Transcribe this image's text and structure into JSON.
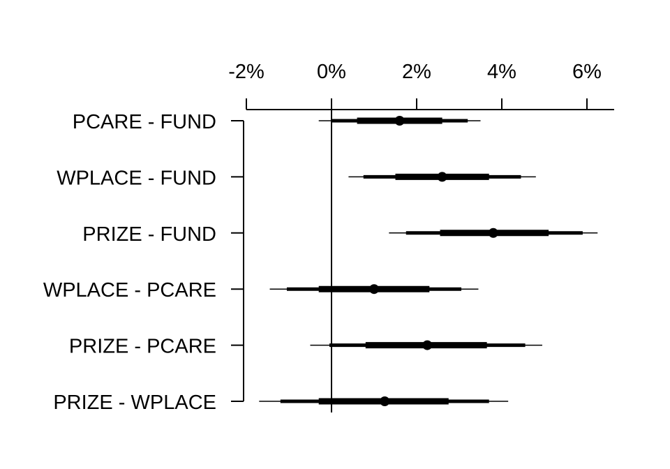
{
  "chart_data": {
    "type": "forest",
    "x_axis": {
      "ticks": [
        -2,
        0,
        2,
        4,
        6
      ],
      "tick_labels": [
        "-2%",
        "0%",
        "2%",
        "4%",
        "6%"
      ],
      "position": "top",
      "reference_line": 0
    },
    "comparisons": [
      {
        "label": "PCARE - FUND",
        "estimate": 1.6,
        "inner": [
          0.6,
          2.6
        ],
        "middle": [
          0.0,
          3.2
        ],
        "outer": [
          -0.3,
          3.5
        ]
      },
      {
        "label": "WPLACE - FUND",
        "estimate": 2.6,
        "inner": [
          1.5,
          3.7
        ],
        "middle": [
          0.75,
          4.45
        ],
        "outer": [
          0.4,
          4.8
        ]
      },
      {
        "label": "PRIZE - FUND",
        "estimate": 3.8,
        "inner": [
          2.55,
          5.1
        ],
        "middle": [
          1.75,
          5.9
        ],
        "outer": [
          1.35,
          6.25
        ]
      },
      {
        "label": "WPLACE - PCARE",
        "estimate": 1.0,
        "inner": [
          -0.3,
          2.3
        ],
        "middle": [
          -1.05,
          3.05
        ],
        "outer": [
          -1.45,
          3.45
        ]
      },
      {
        "label": "PRIZE - PCARE",
        "estimate": 2.25,
        "inner": [
          0.8,
          3.65
        ],
        "middle": [
          -0.05,
          4.55
        ],
        "outer": [
          -0.5,
          4.95
        ]
      },
      {
        "label": "PRIZE - WPLACE",
        "estimate": 1.25,
        "inner": [
          -0.3,
          2.75
        ],
        "middle": [
          -1.2,
          3.7
        ],
        "outer": [
          -1.7,
          4.15
        ]
      }
    ]
  }
}
